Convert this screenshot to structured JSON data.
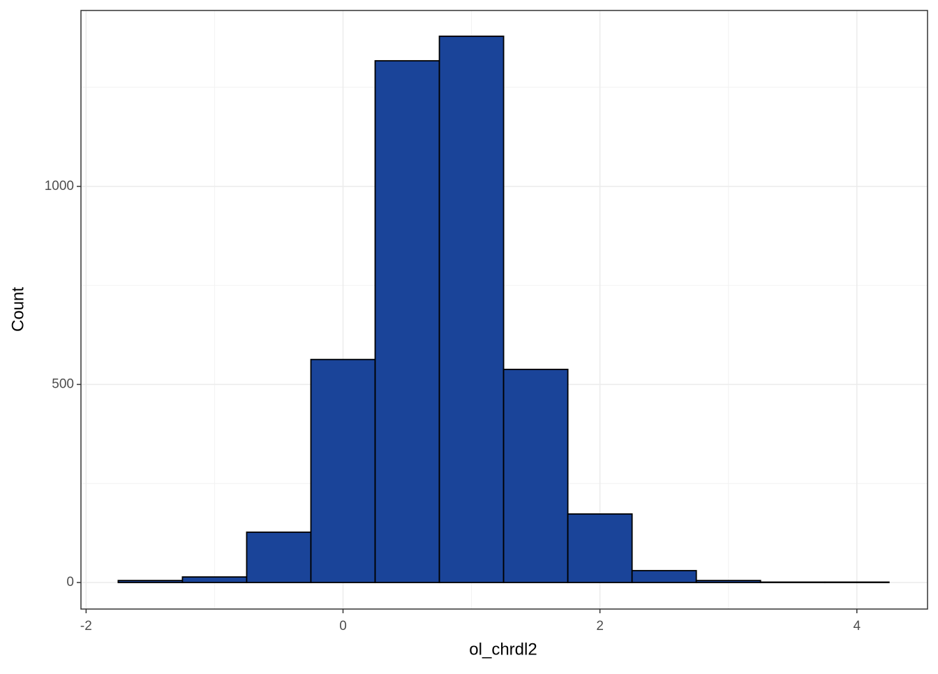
{
  "chart_data": {
    "type": "histogram",
    "xlabel": "ol_chrdl2",
    "ylabel": "Count",
    "bins": [
      -1.75,
      -1.25,
      -0.75,
      -0.25,
      0.25,
      0.75,
      1.25,
      1.75,
      2.25,
      2.75,
      3.25,
      3.75,
      4.25
    ],
    "values": [
      5,
      14,
      127,
      563,
      1317,
      1379,
      538,
      173,
      30,
      5,
      1,
      1
    ],
    "color": "#1a4499",
    "edgecolor": "#000000",
    "xlim": [
      -2.04,
      4.55
    ],
    "ylim": [
      -67,
      1444
    ],
    "xticks": [
      -2,
      0,
      2,
      4
    ],
    "yticks": [
      0,
      500,
      1000
    ],
    "grid": true
  }
}
